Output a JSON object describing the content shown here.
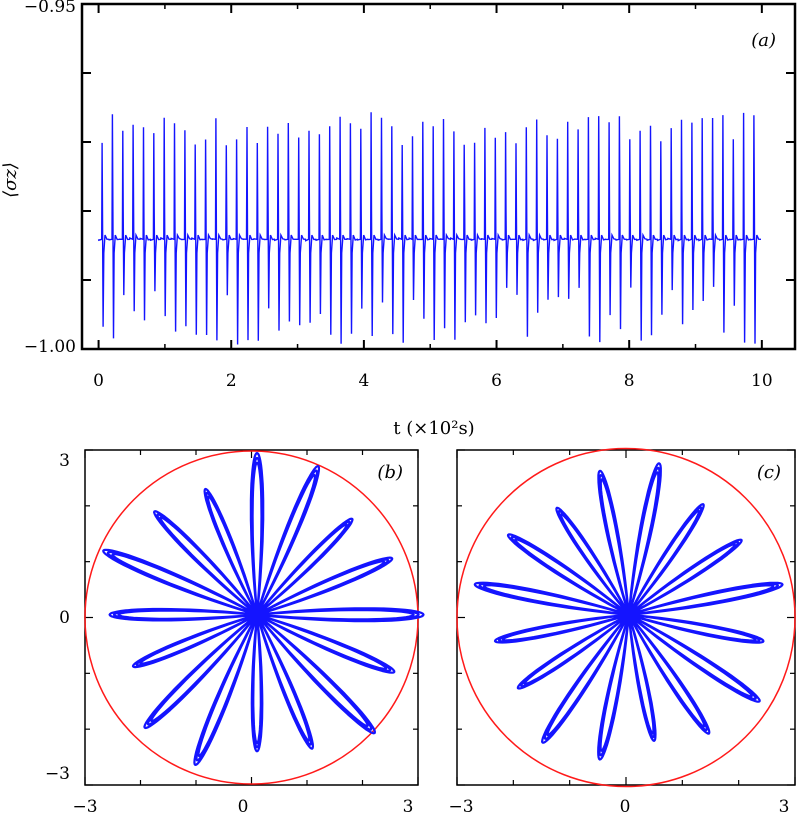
{
  "colors": {
    "trace": "#1414ff",
    "circle": "#ff1a1a",
    "axis": "#000000"
  },
  "chart_data": [
    {
      "panel": "(a)",
      "type": "line",
      "xlabel": "t (×10²s)",
      "ylabel": "⟨σz⟩",
      "xlim": [
        -0.25,
        10.5
      ],
      "ylim": [
        -1.0,
        -0.95
      ],
      "x_ticks": [
        0,
        2,
        4,
        6,
        8,
        10
      ],
      "x_tick_labels": [
        "0",
        "2",
        "4",
        "6",
        "8",
        "10"
      ],
      "y_ticks": [
        -1.0,
        -0.95
      ],
      "y_tick_labels": [
        "−1.00",
        "−0.95"
      ],
      "y_minor_ticks": [
        -0.99,
        -0.98,
        -0.97,
        -0.96
      ],
      "series": [
        {
          "baseline": -0.9841,
          "spike_period": 0.156,
          "spike_max": [
            -0.9657,
            -0.9705
          ],
          "spike_min": [
            -0.9995,
            -0.9905
          ],
          "t_range": [
            0,
            10
          ]
        }
      ]
    },
    {
      "panel": "(b)",
      "type": "line",
      "curve": "rose",
      "xlim": [
        -3,
        3
      ],
      "ylim": [
        -3,
        3
      ],
      "x_tick_labels": [
        "−3",
        "0",
        "3"
      ],
      "y_tick_labels": [
        "3",
        "0",
        "−3"
      ],
      "circle_radius": 3,
      "petals": 16,
      "petal_amplitude_range": [
        2.4,
        3.0
      ],
      "offset": [
        0.1,
        0.05
      ],
      "rotation_deg": 0
    },
    {
      "panel": "(c)",
      "type": "line",
      "curve": "rose",
      "xlim": [
        -3,
        3
      ],
      "ylim": [
        -3,
        3
      ],
      "x_tick_labels": [
        "−3",
        "0",
        "3"
      ],
      "y_tick_labels": [],
      "circle_radius": 3,
      "petals": 16,
      "petal_amplitude_range": [
        2.3,
        2.8
      ],
      "offset": [
        0.05,
        0.05
      ],
      "rotation_deg": 11.25
    }
  ]
}
